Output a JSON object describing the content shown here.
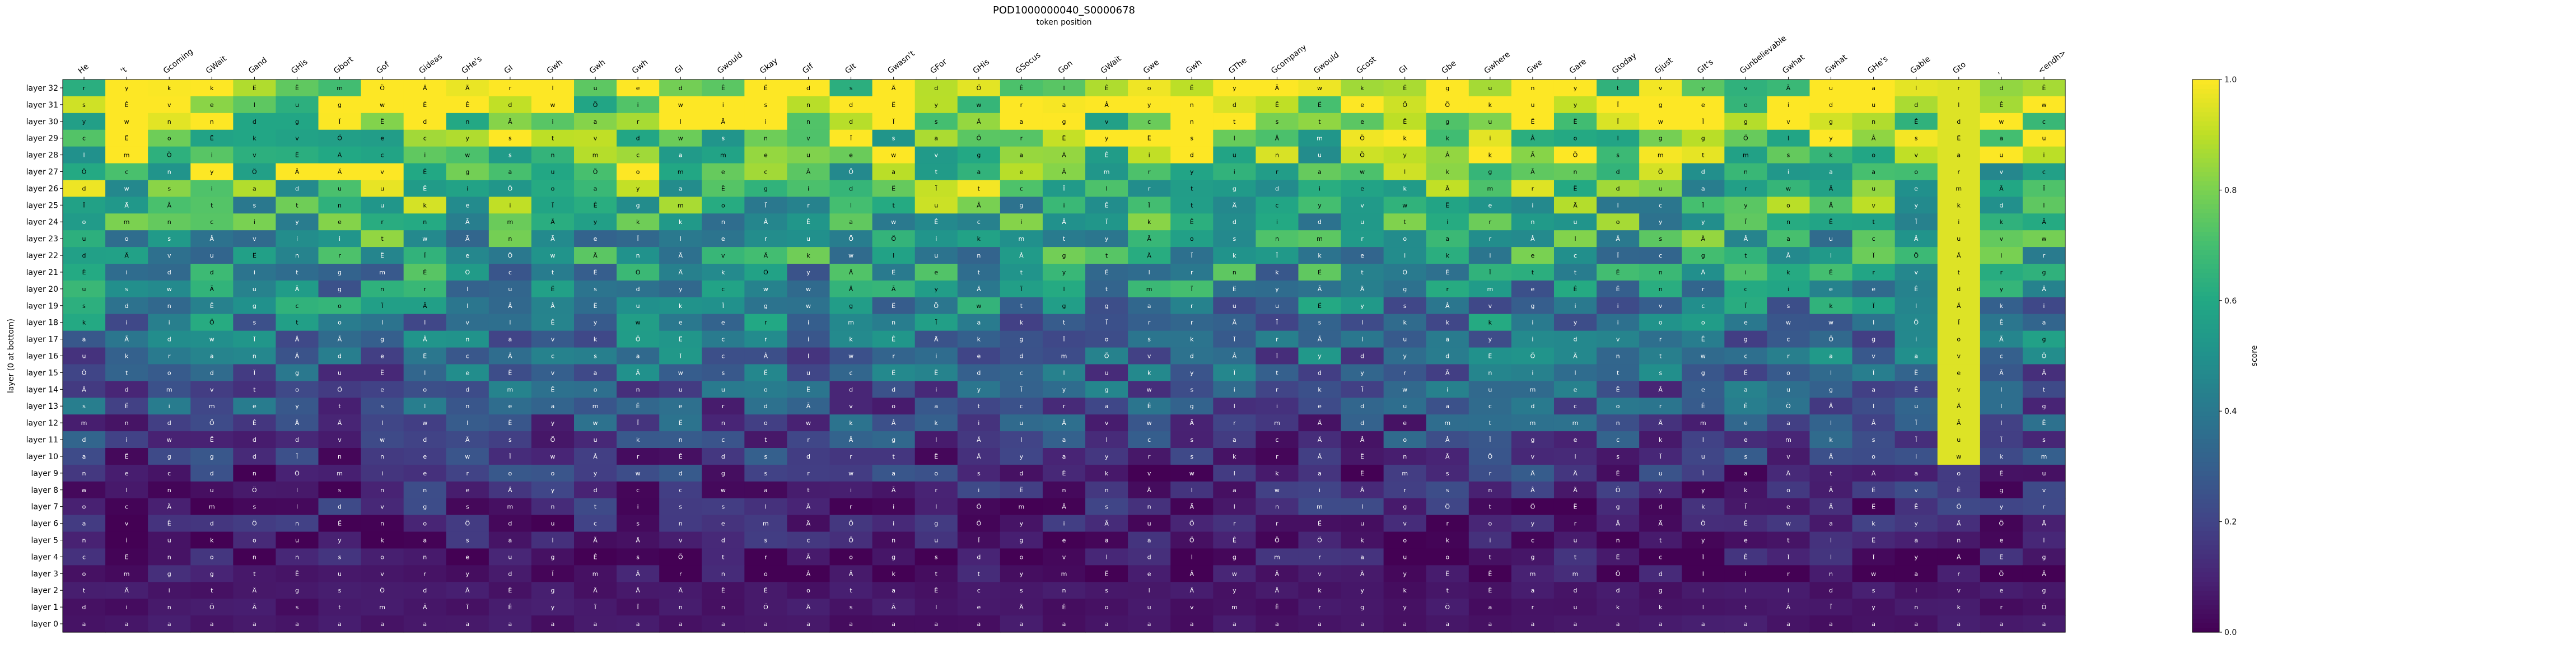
{
  "chart_data": {
    "type": "heatmap",
    "title": "POD1000000040_S0000678",
    "subtitle": "token position",
    "ylabel": "layer (0 at bottom)",
    "colorbar_label": "score",
    "colorbar_ticks": [
      "0.0",
      "0.2",
      "0.4",
      "0.6",
      "0.8",
      "1.0"
    ],
    "value_range": [
      0,
      1
    ],
    "colormap": "viridis",
    "x_tokens": [
      "He",
      "'t",
      "Gcoming",
      "GWait",
      "Gand",
      "GHis",
      "Gbort",
      "Gof",
      "Gideas",
      "GHe's",
      "GI",
      "Gwh",
      "Gwh",
      "Gwh",
      "GI",
      "Gwould",
      "Gkay",
      "GIf",
      "GIt",
      "Gwasn't",
      "GFor",
      "GHis",
      "GSocus",
      "Gon",
      "GWait",
      "Gwe",
      "Gwh",
      "GThe",
      "Gcompany",
      "Gwould",
      "Gcost",
      "GI",
      "Gbe",
      "Gwhere",
      "Gwe",
      "Gare",
      "Gtoday",
      "Gjust",
      "GIt's",
      "Gunbelievable",
      "Gwhat",
      "Gwhat",
      "GHe's",
      "Gable",
      "Gto",
      ",",
      "<endh>"
    ],
    "y_layers": [
      "layer 32",
      "layer 31",
      "layer 30",
      "layer 29",
      "layer 28",
      "layer 27",
      "layer 26",
      "layer 25",
      "layer 24",
      "layer 23",
      "layer 22",
      "layer 21",
      "layer 20",
      "layer 19",
      "layer 18",
      "layer 17",
      "layer 16",
      "layer 15",
      "layer 14",
      "layer 13",
      "layer 12",
      "layer 11",
      "layer 10",
      "layer 9",
      "layer 8",
      "layer 7",
      "layer 6",
      "layer 5",
      "layer 4",
      "layer 3",
      "layer 2",
      "layer 1",
      "layer 0"
    ],
    "cell_token_pool": [
      "s",
      "v",
      "k",
      "w",
      "d",
      "t",
      "l",
      "n",
      "i",
      "o",
      "u",
      "c",
      "m",
      "e",
      "a",
      "r",
      "g",
      "y",
      "Ã",
      "Ä",
      "Ê",
      "Ë",
      "Â",
      "Ï",
      "Ö"
    ]
  }
}
